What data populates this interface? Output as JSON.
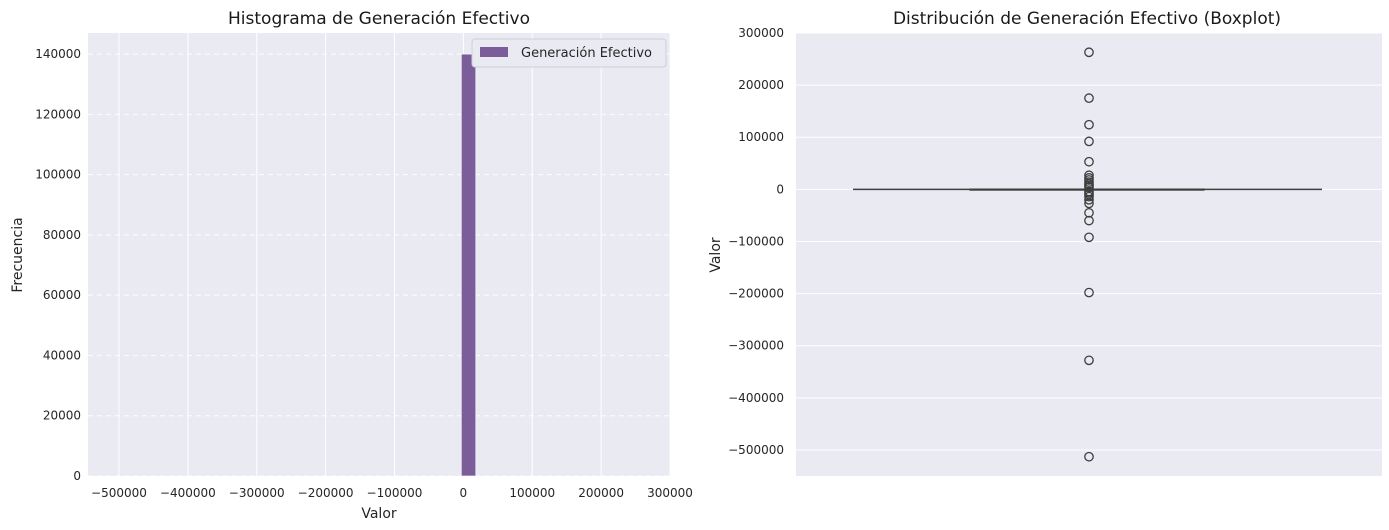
{
  "chart_data": [
    {
      "type": "bar",
      "title": "Histograma de Generación Efectivo",
      "xlabel": "Valor",
      "ylabel": "Frecuencia",
      "xlim": [
        -545000,
        300000
      ],
      "ylim": [
        0,
        147000
      ],
      "x_ticks": [
        -500000,
        -400000,
        -300000,
        -200000,
        -100000,
        0,
        100000,
        200000,
        300000
      ],
      "x_tick_labels": [
        "−500000",
        "−400000",
        "−300000",
        "−200000",
        "−100000",
        "0",
        "100000",
        "200000",
        "300000"
      ],
      "y_ticks": [
        0,
        20000,
        40000,
        60000,
        80000,
        100000,
        120000,
        140000
      ],
      "y_tick_labels": [
        "0",
        "20000",
        "40000",
        "60000",
        "80000",
        "100000",
        "120000",
        "140000"
      ],
      "grid": true,
      "legend": {
        "position": "top-right",
        "entries": [
          "Generación Efectivo"
        ]
      },
      "series": [
        {
          "name": "Generación Efectivo",
          "color": "#7b5e99",
          "bins": [
            {
              "x0": -3000,
              "x1": 18000,
              "count": 140000
            }
          ]
        }
      ]
    },
    {
      "type": "boxplot",
      "title": "Distribución de Generación Efectivo (Boxplot)",
      "xlabel": "",
      "ylabel": "Valor",
      "ylim": [
        -550000,
        300000
      ],
      "y_ticks": [
        -500000,
        -400000,
        -300000,
        -200000,
        -100000,
        0,
        100000,
        200000,
        300000
      ],
      "y_tick_labels": [
        "−500000",
        "−400000",
        "−300000",
        "−200000",
        "−100000",
        "0",
        "100000",
        "200000",
        "300000"
      ],
      "grid": true,
      "box": {
        "median": 0,
        "q1": -500,
        "q3": 500,
        "whisker_low": -2000,
        "whisker_high": 2000,
        "outliers": [
          263000,
          175000,
          124000,
          92000,
          53000,
          27000,
          22000,
          18000,
          14000,
          10000,
          7000,
          4000,
          -4000,
          -7000,
          -10000,
          -14000,
          -20000,
          -27000,
          -45000,
          -60000,
          -92000,
          -198000,
          -328000,
          -513000
        ]
      }
    }
  ]
}
